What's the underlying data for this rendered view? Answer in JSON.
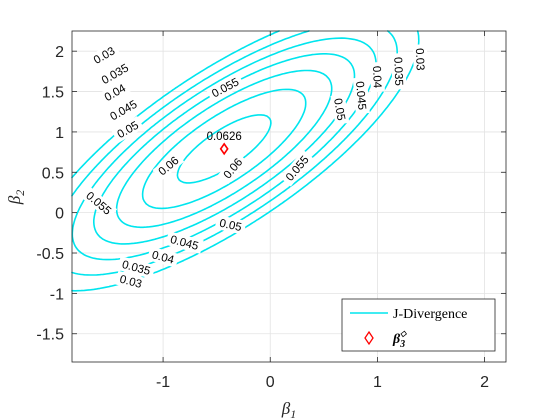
{
  "chart_data": {
    "type": "contour",
    "xlabel": "β",
    "xlabel_sub": "1",
    "ylabel": "β",
    "ylabel_sub": "2",
    "xlim": [
      -1.85,
      2.2
    ],
    "ylim": [
      -1.85,
      2.25
    ],
    "xticks": [
      -1,
      0,
      1,
      2
    ],
    "xtick_labels": [
      "-1",
      "0",
      "1",
      "2"
    ],
    "yticks": [
      -1.5,
      -1,
      -0.5,
      0,
      0.5,
      1,
      1.5,
      2
    ],
    "ytick_labels": [
      "-1.5",
      "-1",
      "-0.5",
      "0",
      "0.5",
      "1",
      "1.5",
      "2"
    ],
    "grid": true,
    "contour_color": "#00e5ee",
    "contour_levels": [
      0.03,
      0.035,
      0.04,
      0.045,
      0.05,
      0.055,
      0.06
    ],
    "contour_labels": [
      {
        "text": "0.03",
        "x": -1.55,
        "y": 1.95,
        "angle": -30
      },
      {
        "text": "0.035",
        "x": -1.45,
        "y": 1.72,
        "angle": -30
      },
      {
        "text": "0.04",
        "x": -1.45,
        "y": 1.49,
        "angle": -30
      },
      {
        "text": "0.045",
        "x": -1.37,
        "y": 1.27,
        "angle": -30
      },
      {
        "text": "0.05",
        "x": -1.33,
        "y": 1.03,
        "angle": -30
      },
      {
        "text": "0.055",
        "x": -0.42,
        "y": 1.55,
        "angle": -28
      },
      {
        "text": "0.06",
        "x": -0.95,
        "y": 0.58,
        "angle": -40
      },
      {
        "text": "0.06",
        "x": -0.35,
        "y": 0.55,
        "angle": -50
      },
      {
        "text": "0.055",
        "x": 0.25,
        "y": 0.55,
        "angle": -50
      },
      {
        "text": "0.055",
        "x": -1.6,
        "y": 0.12,
        "angle": 40
      },
      {
        "text": "0.05",
        "x": -0.37,
        "y": -0.15,
        "angle": 12
      },
      {
        "text": "0.05",
        "x": 0.65,
        "y": 1.28,
        "angle": 80
      },
      {
        "text": "0.045",
        "x": 0.85,
        "y": 1.45,
        "angle": 85
      },
      {
        "text": "0.04",
        "x": 1.0,
        "y": 1.68,
        "angle": 88
      },
      {
        "text": "0.035",
        "x": 1.2,
        "y": 1.75,
        "angle": 88
      },
      {
        "text": "0.03",
        "x": 1.4,
        "y": 1.9,
        "angle": 88
      },
      {
        "text": "0.045",
        "x": -0.8,
        "y": -0.37,
        "angle": 15
      },
      {
        "text": "0.04",
        "x": -1.0,
        "y": -0.55,
        "angle": 15
      },
      {
        "text": "0.035",
        "x": -1.25,
        "y": -0.68,
        "angle": 15
      },
      {
        "text": "0.03",
        "x": -1.3,
        "y": -0.85,
        "angle": 15
      }
    ],
    "peak": {
      "x": -0.43,
      "y": 0.79,
      "label": "0.0626",
      "color": "#ff0000"
    },
    "legend": {
      "position": "bottom-right",
      "entries": [
        {
          "label": "J-Divergence",
          "kind": "line",
          "color": "#00e5ee"
        },
        {
          "label": "β",
          "label_sub": "3",
          "label_sup": "◇",
          "kind": "marker",
          "color": "#ff0000"
        }
      ]
    }
  }
}
